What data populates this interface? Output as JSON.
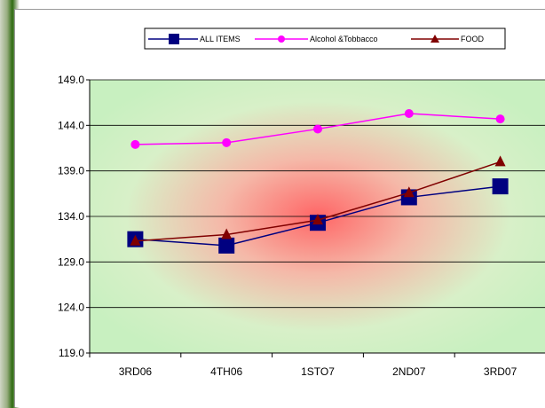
{
  "chart_data": {
    "type": "line",
    "categories": [
      "3RD06",
      "4TH06",
      "1STO7",
      "2ND07",
      "3RD07"
    ],
    "series": [
      {
        "name": "ALL ITEMS",
        "values": [
          131.5,
          130.8,
          133.3,
          136.1,
          137.3
        ],
        "color": "#000080",
        "marker": "square"
      },
      {
        "name": "Alcohol &Tobbacco",
        "values": [
          141.9,
          142.1,
          143.6,
          145.3,
          144.7
        ],
        "color": "#ff00ff",
        "marker": "circle"
      },
      {
        "name": "FOOD",
        "values": [
          131.3,
          132.0,
          133.6,
          136.6,
          140.0
        ],
        "color": "#800000",
        "marker": "triangle"
      }
    ],
    "yticks": [
      "119.0",
      "124.0",
      "129.0",
      "134.0",
      "139.0",
      "144.0",
      "149.0"
    ],
    "ylim": [
      119.0,
      149.0
    ],
    "grid": true,
    "legend_position": "top"
  }
}
